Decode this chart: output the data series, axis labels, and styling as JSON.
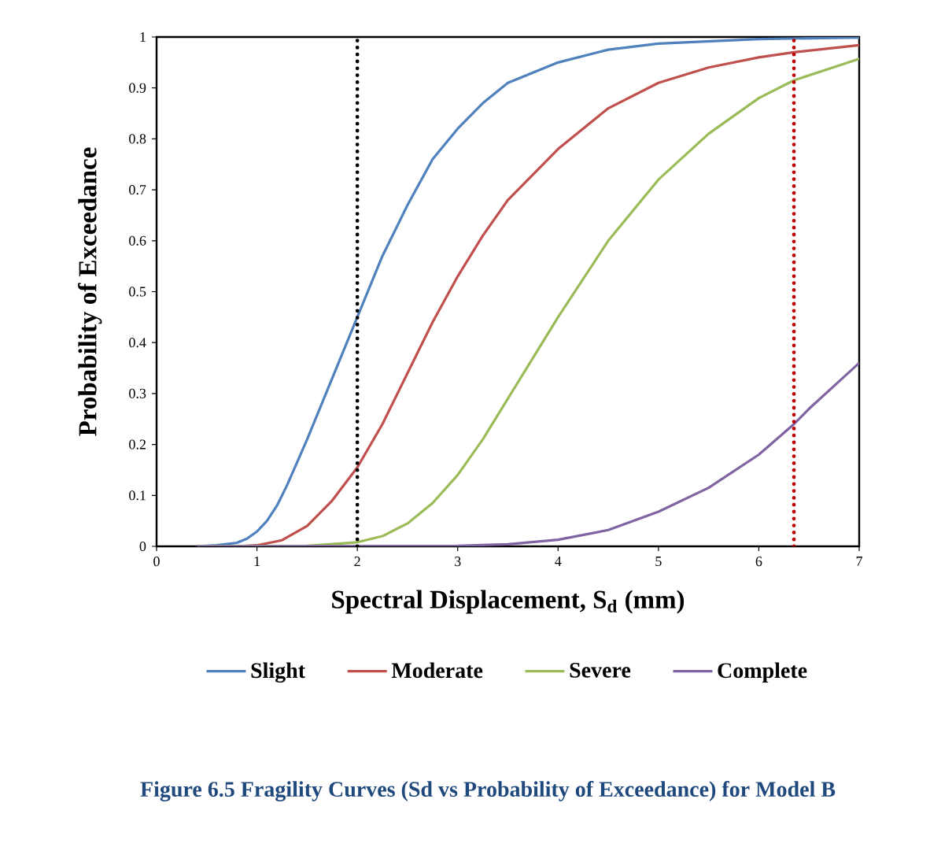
{
  "chart_data": {
    "type": "line",
    "xlabel": "Spectral Displacement, S$_{d}$ (mm)",
    "ylabel": "Probability of  Exceedance",
    "annotations": [
      "Figure 6.5 Fragility Curves (Sd vs Probability of Exceedance) for Model B"
    ],
    "xlim": [
      0,
      7
    ],
    "ylim": [
      0,
      1
    ],
    "xticks": [
      0,
      1,
      2,
      3,
      4,
      5,
      6,
      7
    ],
    "yticks": [
      0,
      0.1,
      0.2,
      0.3,
      0.4,
      0.5,
      0.6,
      0.7,
      0.8,
      0.9,
      1
    ],
    "legend": "bottom",
    "grid": false,
    "marker": "none",
    "line_style": "solid",
    "ref_lines": [
      {
        "axis": "x",
        "value": 2,
        "color": "#000000",
        "line_style": "dotted"
      },
      {
        "axis": "x",
        "value": 6.35,
        "color": "#c00000",
        "line_style": "dotted"
      }
    ],
    "series": [
      {
        "name": "Slight",
        "color": "#4f81bd",
        "x": [
          0.4,
          0.6,
          0.8,
          0.9,
          1.0,
          1.1,
          1.2,
          1.3,
          1.5,
          1.75,
          2,
          2.25,
          2.5,
          2.75,
          3,
          3.25,
          3.5,
          4,
          4.5,
          5,
          6,
          7
        ],
        "values": [
          0,
          0.002,
          0.007,
          0.015,
          0.029,
          0.05,
          0.08,
          0.12,
          0.21,
          0.33,
          0.45,
          0.57,
          0.67,
          0.76,
          0.82,
          0.87,
          0.91,
          0.95,
          0.975,
          0.987,
          0.996,
          0.999
        ]
      },
      {
        "name": "Moderate",
        "color": "#c0504d",
        "x": [
          0.4,
          0.8,
          1.0,
          1.25,
          1.5,
          1.75,
          2,
          2.25,
          2.5,
          2.75,
          3,
          3.25,
          3.5,
          4,
          4.5,
          5,
          5.5,
          6,
          6.35,
          7
        ],
        "values": [
          0,
          0,
          0.002,
          0.012,
          0.04,
          0.09,
          0.155,
          0.24,
          0.34,
          0.44,
          0.53,
          0.61,
          0.68,
          0.78,
          0.86,
          0.91,
          0.94,
          0.96,
          0.97,
          0.984
        ]
      },
      {
        "name": "Severe",
        "color": "#9bbb59",
        "x": [
          0.4,
          1.5,
          2,
          2.25,
          2.5,
          2.75,
          3,
          3.25,
          3.5,
          3.75,
          4,
          4.5,
          5,
          5.5,
          6,
          6.35,
          7
        ],
        "values": [
          0,
          0.001,
          0.008,
          0.02,
          0.045,
          0.085,
          0.14,
          0.21,
          0.29,
          0.37,
          0.45,
          0.6,
          0.72,
          0.81,
          0.88,
          0.915,
          0.957
        ]
      },
      {
        "name": "Complete",
        "color": "#8064a2",
        "x": [
          0.4,
          3,
          3.5,
          4,
          4.5,
          5,
          5.5,
          6,
          6.35,
          6.5,
          7
        ],
        "values": [
          0,
          0.001,
          0.004,
          0.013,
          0.032,
          0.068,
          0.115,
          0.18,
          0.24,
          0.27,
          0.36
        ]
      }
    ]
  }
}
